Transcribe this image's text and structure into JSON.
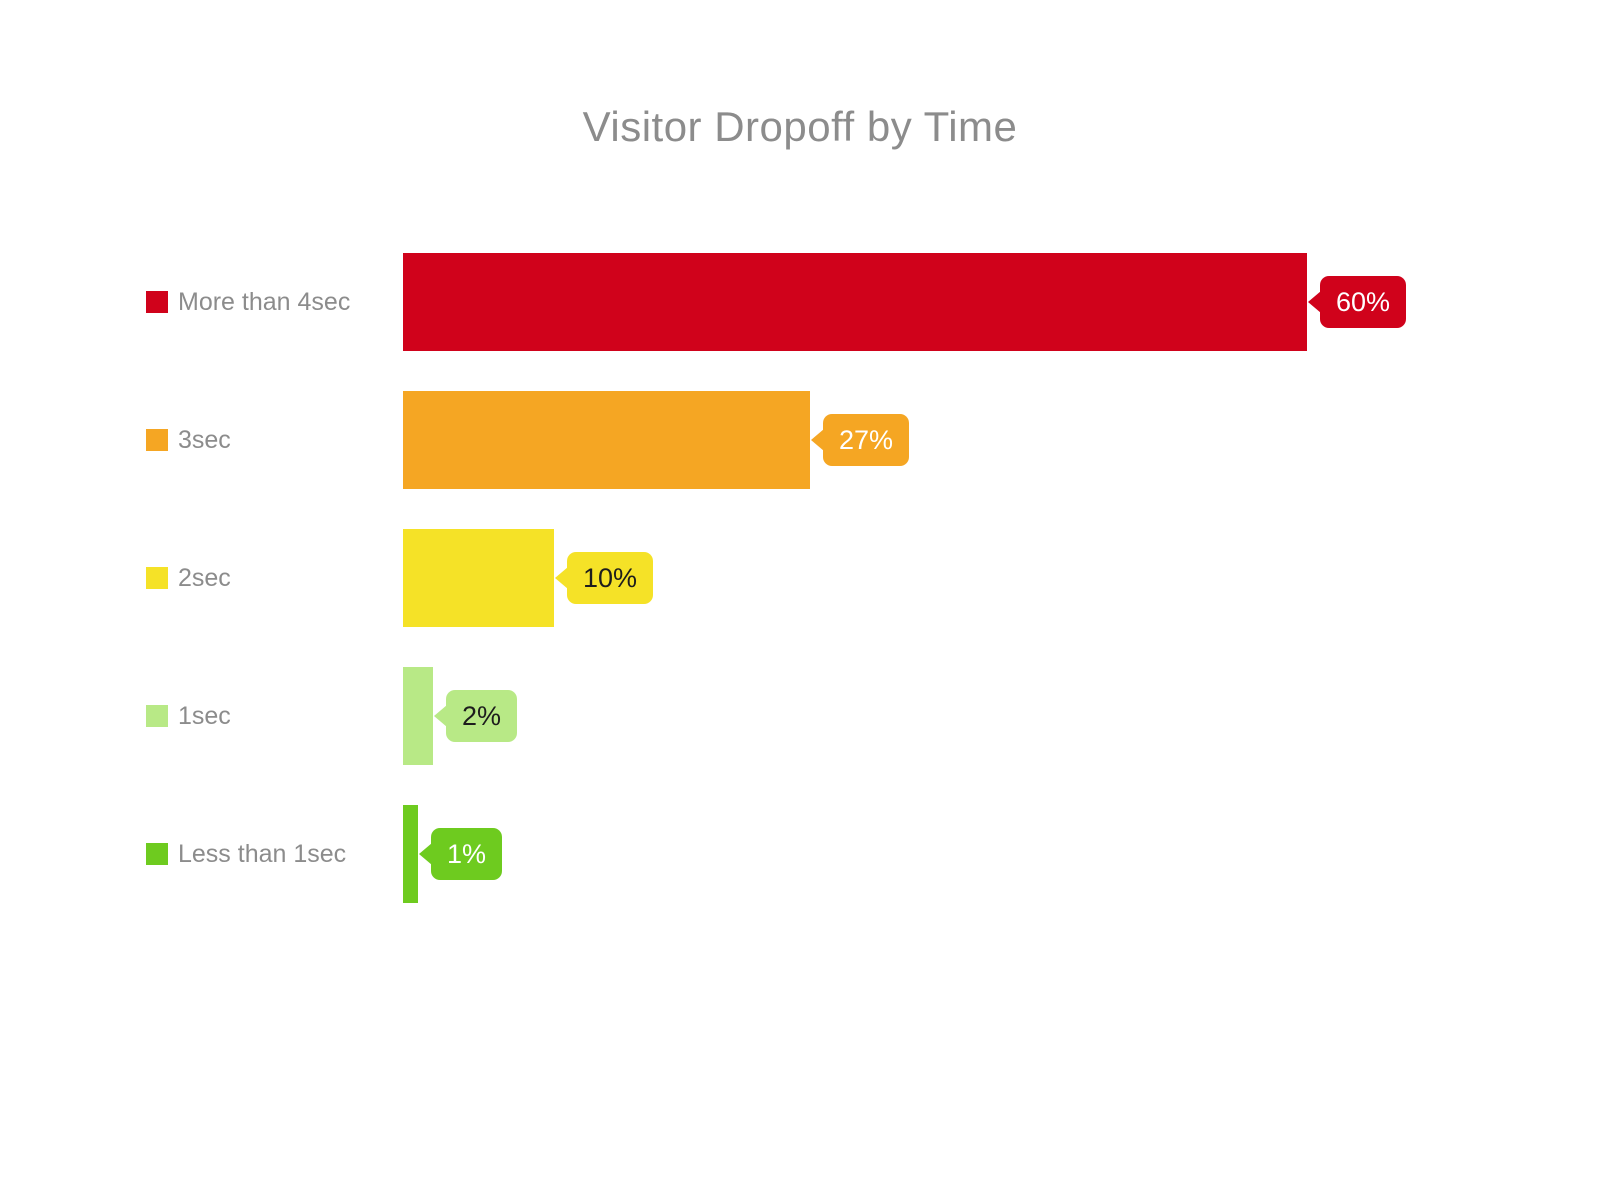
{
  "page": {
    "background": "#ffffff"
  },
  "chart_data": {
    "type": "bar",
    "orientation": "horizontal",
    "title": "Visitor Dropoff by Time",
    "categories": [
      "More than 4sec",
      "3sec",
      "2sec",
      "1sec",
      "Less than 1sec"
    ],
    "values": [
      60,
      27,
      10,
      2,
      1
    ],
    "value_labels": [
      "60%",
      "27%",
      "10%",
      "2%",
      "1%"
    ],
    "bar_colors": [
      "#d0021b",
      "#f5a623",
      "#f5e227",
      "#b8e986",
      "#6ecb1f"
    ],
    "label_text_colors": [
      "#ffffff",
      "#ffffff",
      "#1d1d1d",
      "#1d1d1d",
      "#ffffff"
    ],
    "xlim": [
      0,
      60
    ],
    "grid": false,
    "axes_shown": false,
    "legend_position": "left",
    "label_style": "callout-bubble-at-bar-end"
  },
  "styles": {
    "title_color": "#8c8c8c",
    "category_label_color": "#8c8c8c"
  }
}
